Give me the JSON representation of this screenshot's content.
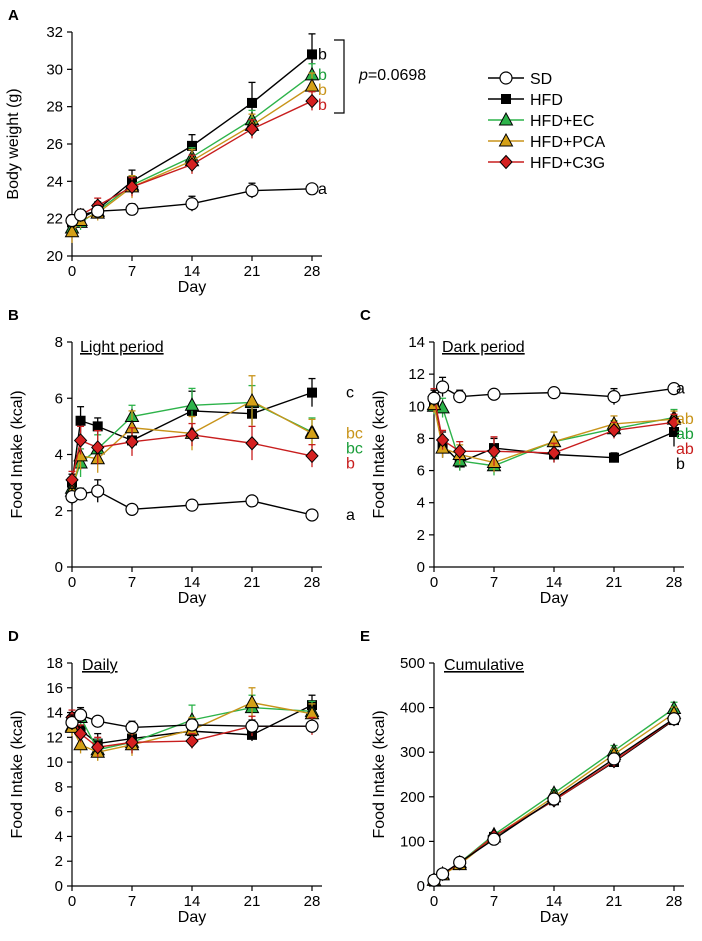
{
  "colors": {
    "SD": "#ffffff",
    "HFD": "#000000",
    "HFD+EC": "#2db34a",
    "HFD+PCA": "#d4a017",
    "HFD+C3G": "#d42020",
    "line_SD": "#000000",
    "line_HFD": "#000000",
    "line_HFD+EC": "#2db34a",
    "line_HFD+PCA": "#c8941a",
    "line_HFD+C3G": "#c81e1e",
    "letter_black": "#000000",
    "letter_green": "#1a9e3a",
    "letter_orange": "#c8941a",
    "letter_red": "#c81e1e"
  },
  "markers": {
    "SD": "circle-icon",
    "HFD": "square-icon",
    "HFD+EC": "triangle-icon",
    "HFD+PCA": "triangle-icon",
    "HFD+C3G": "diamond-icon"
  },
  "legend": {
    "entries": [
      "SD",
      "HFD",
      "HFD+EC",
      "HFD+PCA",
      "HFD+C3G"
    ]
  },
  "chart_data": [
    {
      "panel": "A",
      "type": "line",
      "title": "",
      "xlabel": "Day",
      "ylabel": "Body weight (g)",
      "x": [
        0,
        1,
        3,
        7,
        14,
        21,
        28
      ],
      "xticks": [
        0,
        7,
        14,
        21,
        28
      ],
      "ylim": [
        20,
        32
      ],
      "yticks": [
        20,
        22,
        24,
        26,
        28,
        30,
        32
      ],
      "series": [
        {
          "name": "SD",
          "values": [
            21.9,
            22.2,
            22.4,
            22.5,
            22.8,
            23.5,
            23.6
          ],
          "errors": [
            0.3,
            0.3,
            0.3,
            0.3,
            0.4,
            0.4,
            0.2
          ]
        },
        {
          "name": "HFD",
          "values": [
            21.8,
            22.0,
            22.5,
            24.0,
            25.9,
            28.2,
            30.8
          ],
          "errors": [
            0.3,
            0.3,
            0.4,
            0.6,
            0.6,
            1.1,
            1.1
          ]
        },
        {
          "name": "HFD+EC",
          "values": [
            21.5,
            21.8,
            22.4,
            23.8,
            25.3,
            27.3,
            29.7
          ],
          "errors": [
            0.4,
            0.4,
            0.4,
            0.5,
            0.5,
            0.5,
            0.6
          ]
        },
        {
          "name": "HFD+PCA",
          "values": [
            21.3,
            21.9,
            22.3,
            23.7,
            25.1,
            27.0,
            29.1
          ],
          "errors": [
            0.6,
            0.4,
            0.4,
            0.6,
            0.6,
            0.6,
            0.7
          ]
        },
        {
          "name": "HFD+C3G",
          "values": [
            21.9,
            22.2,
            22.7,
            23.7,
            24.9,
            26.8,
            28.3
          ],
          "errors": [
            0.3,
            0.3,
            0.4,
            0.5,
            0.5,
            0.5,
            0.5
          ]
        }
      ],
      "significance": [
        {
          "series": "HFD",
          "label": "b",
          "color": "letter_black"
        },
        {
          "series": "HFD+EC",
          "label": "b",
          "color": "letter_green"
        },
        {
          "series": "HFD+PCA",
          "label": "b",
          "color": "letter_orange"
        },
        {
          "series": "HFD+C3G",
          "label": "b",
          "color": "letter_red"
        },
        {
          "series": "SD",
          "label": "a",
          "color": "letter_black"
        }
      ],
      "bracket": {
        "p_symbol": "p",
        "p_text": "=0.0698"
      }
    },
    {
      "panel": "B",
      "type": "line",
      "title": "Light period",
      "xlabel": "Day",
      "ylabel": "Food Intake (kcal)",
      "x": [
        0,
        1,
        3,
        7,
        14,
        21,
        28
      ],
      "xticks": [
        0,
        7,
        14,
        21,
        28
      ],
      "ylim": [
        0,
        8
      ],
      "yticks": [
        0,
        2,
        4,
        6,
        8
      ],
      "series": [
        {
          "name": "SD",
          "values": [
            2.5,
            2.6,
            2.7,
            2.05,
            2.2,
            2.35,
            1.85
          ],
          "errors": [
            0.3,
            0.2,
            0.4,
            0.1,
            0.15,
            0.15,
            0.1
          ]
        },
        {
          "name": "HFD",
          "values": [
            3.0,
            5.2,
            5.0,
            4.5,
            5.55,
            5.45,
            6.2
          ],
          "errors": [
            0.3,
            0.5,
            0.3,
            0.3,
            0.7,
            0.4,
            0.5
          ]
        },
        {
          "name": "HFD+EC",
          "values": [
            2.8,
            3.7,
            4.2,
            5.35,
            5.75,
            5.85,
            4.8
          ],
          "errors": [
            0.3,
            0.5,
            0.5,
            0.4,
            0.6,
            0.6,
            0.5
          ]
        },
        {
          "name": "HFD+PCA",
          "values": [
            2.7,
            3.95,
            3.85,
            4.95,
            4.75,
            5.9,
            4.75
          ],
          "errors": [
            0.3,
            0.5,
            0.5,
            0.6,
            0.6,
            0.9,
            0.5
          ]
        },
        {
          "name": "HFD+C3G",
          "values": [
            3.1,
            4.5,
            4.25,
            4.45,
            4.7,
            4.4,
            3.95
          ],
          "errors": [
            0.3,
            0.5,
            0.6,
            0.5,
            0.4,
            0.6,
            0.4
          ]
        }
      ],
      "significance": [
        {
          "series": "HFD",
          "label": "c",
          "color": "letter_black"
        },
        {
          "series": "HFD+PCA",
          "label": "bc",
          "color": "letter_orange"
        },
        {
          "series": "HFD+EC",
          "label": "bc",
          "color": "letter_green"
        },
        {
          "series": "HFD+C3G",
          "label": "b",
          "color": "letter_red"
        },
        {
          "series": "SD",
          "label": "a",
          "color": "letter_black"
        }
      ]
    },
    {
      "panel": "C",
      "type": "line",
      "title": "Dark period",
      "xlabel": "Day",
      "ylabel": "Food Intake (kcal)",
      "x": [
        0,
        1,
        3,
        7,
        14,
        21,
        28
      ],
      "xticks": [
        0,
        7,
        14,
        21,
        28
      ],
      "ylim": [
        0,
        14
      ],
      "yticks": [
        0,
        2,
        4,
        6,
        8,
        10,
        12,
        14
      ],
      "series": [
        {
          "name": "SD",
          "values": [
            10.5,
            11.2,
            10.6,
            10.75,
            10.85,
            10.6,
            11.1
          ],
          "errors": [
            0.5,
            0.6,
            0.4,
            0.2,
            0.2,
            0.5,
            0.2
          ]
        },
        {
          "name": "HFD",
          "values": [
            10.3,
            7.6,
            6.5,
            7.4,
            7.0,
            6.8,
            8.4
          ],
          "errors": [
            0.5,
            0.8,
            0.5,
            0.6,
            0.5,
            0.3,
            0.9
          ]
        },
        {
          "name": "HFD+EC",
          "values": [
            10.0,
            9.9,
            6.6,
            6.3,
            7.8,
            8.6,
            9.3
          ],
          "errors": [
            0.5,
            0.6,
            0.6,
            0.6,
            0.6,
            0.5,
            0.5
          ]
        },
        {
          "name": "HFD+PCA",
          "values": [
            10.1,
            7.4,
            7.0,
            6.5,
            7.8,
            8.9,
            9.2
          ],
          "errors": [
            0.5,
            0.6,
            0.6,
            0.6,
            0.6,
            0.5,
            0.5
          ]
        },
        {
          "name": "HFD+C3G",
          "values": [
            10.6,
            7.9,
            7.2,
            7.2,
            7.1,
            8.5,
            9.0
          ],
          "errors": [
            0.5,
            0.6,
            0.6,
            0.9,
            0.6,
            0.5,
            0.5
          ]
        }
      ],
      "significance": [
        {
          "series": "SD",
          "label": "a",
          "color": "letter_black"
        },
        {
          "series": "HFD+PCA",
          "label": "ab",
          "color": "letter_orange"
        },
        {
          "series": "HFD+EC",
          "label": "ab",
          "color": "letter_green"
        },
        {
          "series": "HFD+C3G",
          "label": "ab",
          "color": "letter_red"
        },
        {
          "series": "HFD",
          "label": "b",
          "color": "letter_black"
        }
      ]
    },
    {
      "panel": "D",
      "type": "line",
      "title": "Daily",
      "xlabel": "Day",
      "ylabel": "Food Intake (kcal)",
      "x": [
        0,
        1,
        3,
        7,
        14,
        21,
        28
      ],
      "xticks": [
        0,
        7,
        14,
        21,
        28
      ],
      "ylim": [
        0,
        18
      ],
      "yticks": [
        0,
        2,
        4,
        6,
        8,
        10,
        12,
        14,
        16,
        18
      ],
      "series": [
        {
          "name": "SD",
          "values": [
            13.2,
            13.8,
            13.3,
            12.8,
            13.0,
            12.9,
            12.9
          ],
          "errors": [
            0.6,
            0.6,
            0.4,
            0.5,
            0.4,
            0.5,
            0.4
          ]
        },
        {
          "name": "HFD",
          "values": [
            13.4,
            12.6,
            11.5,
            11.9,
            12.5,
            12.2,
            14.6
          ],
          "errors": [
            0.6,
            0.9,
            0.8,
            0.9,
            1.0,
            0.5,
            0.8
          ]
        },
        {
          "name": "HFD+EC",
          "values": [
            12.9,
            13.6,
            11.0,
            11.6,
            13.4,
            14.4,
            14.1
          ],
          "errors": [
            0.7,
            0.6,
            0.8,
            0.9,
            1.2,
            1.0,
            0.8
          ]
        },
        {
          "name": "HFD+PCA",
          "values": [
            12.8,
            11.4,
            10.8,
            11.4,
            12.6,
            14.8,
            13.9
          ],
          "errors": [
            0.7,
            0.7,
            0.7,
            0.9,
            1.0,
            1.2,
            0.8
          ]
        },
        {
          "name": "HFD+C3G",
          "values": [
            13.6,
            12.3,
            11.2,
            11.6,
            11.7,
            12.9,
            12.9
          ],
          "errors": [
            0.6,
            0.7,
            0.8,
            0.9,
            0.6,
            0.8,
            0.7
          ]
        }
      ]
    },
    {
      "panel": "E",
      "type": "line",
      "title": "Cumulative",
      "xlabel": "Day",
      "ylabel": "Food Intake (kcal)",
      "x": [
        0,
        1,
        3,
        7,
        14,
        21,
        28
      ],
      "xticks": [
        0,
        7,
        14,
        21,
        28
      ],
      "ylim": [
        0,
        500
      ],
      "yticks": [
        0,
        100,
        200,
        300,
        400,
        500
      ],
      "series": [
        {
          "name": "SD",
          "values": [
            13,
            27,
            53,
            105,
            195,
            285,
            375
          ],
          "errors": [
            2,
            3,
            4,
            6,
            8,
            10,
            10
          ]
        },
        {
          "name": "HFD",
          "values": [
            13,
            26,
            50,
            110,
            192,
            278,
            372
          ],
          "errors": [
            2,
            3,
            4,
            6,
            8,
            10,
            12
          ]
        },
        {
          "name": "HFD+EC",
          "values": [
            13,
            27,
            52,
            115,
            208,
            303,
            398
          ],
          "errors": [
            2,
            3,
            4,
            6,
            8,
            12,
            14
          ]
        },
        {
          "name": "HFD+PCA",
          "values": [
            13,
            25,
            48,
            110,
            200,
            295,
            387
          ],
          "errors": [
            2,
            3,
            4,
            6,
            8,
            12,
            14
          ]
        },
        {
          "name": "HFD+C3G",
          "values": [
            14,
            27,
            51,
            112,
            192,
            280,
            374
          ],
          "errors": [
            2,
            3,
            4,
            6,
            8,
            10,
            12
          ]
        }
      ]
    }
  ],
  "panel_labels": {
    "A": "A",
    "B": "B",
    "C": "C",
    "D": "D",
    "E": "E"
  }
}
